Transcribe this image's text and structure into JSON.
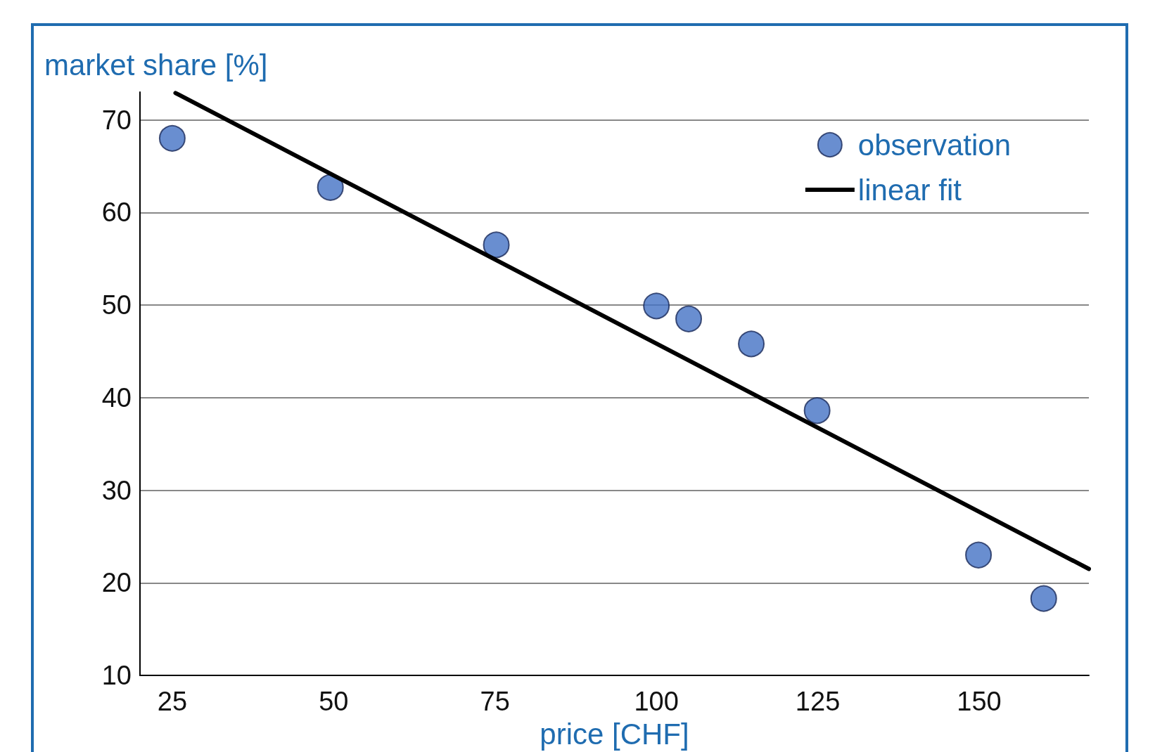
{
  "chart_data": {
    "type": "scatter",
    "xlabel": "price [CHF]",
    "ylabel": "market share [%]",
    "xlim": [
      20,
      167
    ],
    "xticks": [
      25,
      50,
      75,
      100,
      125,
      150
    ],
    "ylim": [
      10,
      73
    ],
    "yticks": [
      10,
      20,
      30,
      40,
      50,
      60,
      70
    ],
    "grid": "y",
    "legend": "top right",
    "series": [
      {
        "name": "observation",
        "marker": "circle",
        "color": "#4472c4",
        "x": [
          25,
          49.5,
          75.2,
          100,
          105,
          114.7,
          124.9,
          149.9,
          160
        ],
        "values": [
          68,
          62.7,
          56.5,
          49.9,
          48.5,
          45.8,
          38.6,
          23,
          18.3
        ]
      },
      {
        "name": "linear fit",
        "type": "line",
        "marker": "none",
        "line_style": "solid",
        "color": "#000000",
        "x": [
          25.5,
          167
        ],
        "values": [
          72.9,
          21.5
        ]
      }
    ]
  }
}
